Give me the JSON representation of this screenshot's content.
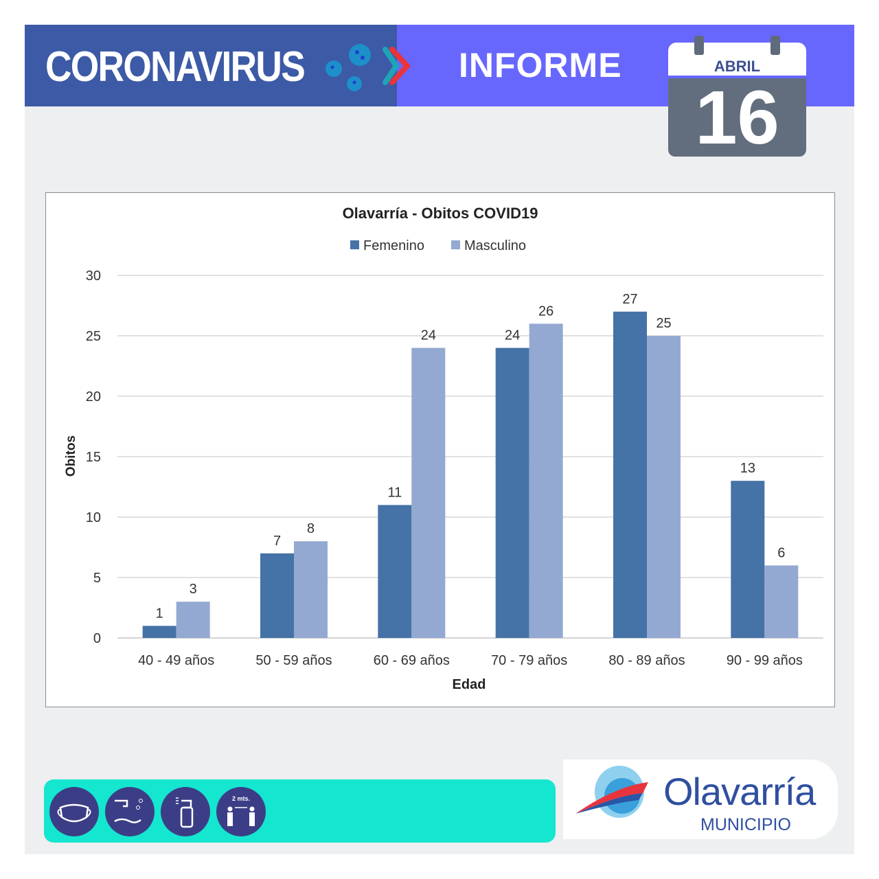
{
  "header": {
    "title": "CORONAVIRUS",
    "section": "INFORME",
    "calendar": {
      "month": "ABRIL",
      "day": "16"
    }
  },
  "colors": {
    "header_left": "#3c5aa6",
    "header_right": "#6767fe",
    "femenino": "#4572a7",
    "masculino": "#93a9d1",
    "bottom_bar": "#15e6cf"
  },
  "icons": [
    "virus-icon",
    "chevron-right-icon",
    "mask-icon",
    "hand-washing-icon",
    "sanitizer-spray-icon",
    "social-distance-icon"
  ],
  "distance_label": "2 mts.",
  "logo": {
    "name": "Olavarría",
    "sub": "MUNICIPIO"
  },
  "chart_data": {
    "type": "bar",
    "title": "Olavarría - Obitos COVID19",
    "xlabel": "Edad",
    "ylabel": "Obitos",
    "ylim": [
      0,
      30
    ],
    "yticks": [
      0,
      5,
      10,
      15,
      20,
      25,
      30
    ],
    "grid": true,
    "legend_placement": "top",
    "categories": [
      "40 - 49 años",
      "50 - 59 años",
      "60 - 69 años",
      "70 - 79 años",
      "80 - 89 años",
      "90 - 99 años"
    ],
    "series": [
      {
        "name": "Femenino",
        "values": [
          1,
          7,
          11,
          24,
          27,
          13
        ]
      },
      {
        "name": "Masculino",
        "values": [
          3,
          8,
          24,
          26,
          25,
          6
        ]
      }
    ]
  }
}
